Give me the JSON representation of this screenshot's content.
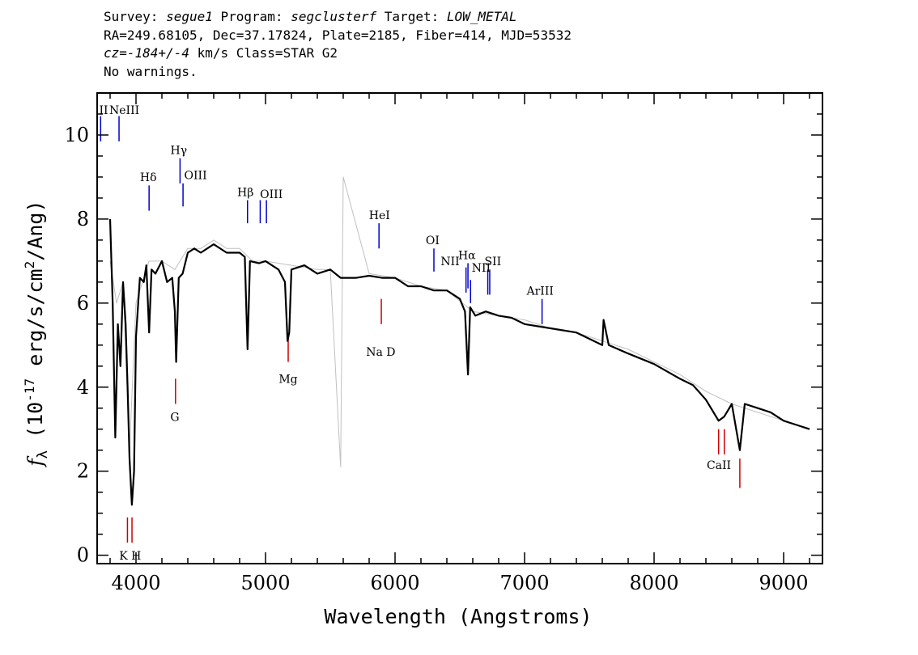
{
  "header": {
    "line1": {
      "survey_label": "Survey: ",
      "survey": "segue1",
      "program_label": " Program: ",
      "program": "segclusterf",
      "target_label": " Target: ",
      "target": "LOW_METAL"
    },
    "line2": "RA=249.68105, Dec=37.17824, Plate=2185, Fiber=414, MJD=53532",
    "line3": {
      "cz": "cz=-184+/-4",
      "rest": " km/s Class=STAR G2"
    },
    "line4": "No warnings."
  },
  "chart_data": {
    "type": "line",
    "xlabel": "Wavelength (Angstroms)",
    "ylabel": "f_λ (10^-17 erg/s/cm²/Ang)",
    "xlim": [
      3700,
      9300
    ],
    "ylim": [
      -0.2,
      11
    ],
    "x_ticks": [
      4000,
      5000,
      6000,
      7000,
      8000,
      9000
    ],
    "y_ticks": [
      0,
      2,
      4,
      6,
      8,
      10
    ],
    "grid": false,
    "colors": {
      "spectrum": "#000000",
      "noise": "#c0c0c0",
      "emission": "#0000cc",
      "absorption": "#cc0000"
    },
    "series": [
      {
        "style": "smoothed",
        "x": [
          3800,
          3820,
          3840,
          3860,
          3880,
          3900,
          3920,
          3935,
          3950,
          3968,
          3985,
          4000,
          4030,
          4060,
          4080,
          4101,
          4120,
          4150,
          4200,
          4240,
          4280,
          4300,
          4310,
          4330,
          4360,
          4400,
          4450,
          4500,
          4600,
          4700,
          4800,
          4840,
          4861,
          4880,
          4950,
          5000,
          5100,
          5150,
          5170,
          5183,
          5200,
          5300,
          5400,
          5500,
          5580,
          5600,
          5700,
          5800,
          5900,
          6000,
          6100,
          6200,
          6300,
          6400,
          6500,
          6540,
          6563,
          6580,
          6620,
          6700,
          6800,
          6900,
          7000,
          7200,
          7400,
          7600,
          7610,
          7650,
          7800,
          8000,
          8200,
          8300,
          8400,
          8498,
          8542,
          8600,
          8662,
          8700,
          8800,
          8900,
          9000,
          9100,
          9200
        ],
        "y": [
          8.0,
          6.0,
          2.8,
          5.5,
          4.5,
          6.5,
          5.5,
          4.0,
          2.3,
          1.2,
          2.0,
          5.2,
          6.6,
          6.5,
          6.9,
          5.3,
          6.8,
          6.7,
          7.0,
          6.5,
          6.6,
          5.8,
          4.6,
          6.6,
          6.7,
          7.2,
          7.3,
          7.2,
          7.4,
          7.2,
          7.2,
          7.1,
          4.9,
          7.0,
          6.95,
          7.0,
          6.8,
          6.5,
          5.1,
          5.3,
          6.8,
          6.9,
          6.7,
          6.8,
          6.6,
          6.6,
          6.6,
          6.65,
          6.6,
          6.6,
          6.4,
          6.4,
          6.3,
          6.3,
          6.1,
          5.8,
          4.3,
          5.9,
          5.7,
          5.8,
          5.7,
          5.65,
          5.5,
          5.4,
          5.3,
          5.0,
          5.6,
          5.0,
          4.8,
          4.55,
          4.2,
          4.05,
          3.7,
          3.2,
          3.3,
          3.6,
          2.5,
          3.6,
          3.5,
          3.4,
          3.2,
          3.1,
          3.0
        ]
      },
      {
        "style": "noise",
        "x": [
          3800,
          3850,
          3900,
          3950,
          4000,
          4100,
          4200,
          4300,
          4400,
          4500,
          4600,
          4700,
          4800,
          4900,
          5000,
          5200,
          5400,
          5500,
          5580,
          5600,
          5800,
          6000,
          6200,
          6400,
          6600,
          6800,
          7000,
          7200,
          7400,
          7600,
          7800,
          8000,
          8200,
          8400,
          8600,
          8800,
          9000,
          9200
        ],
        "y": [
          7.0,
          6.0,
          6.5,
          2.5,
          6.0,
          7.0,
          7.0,
          6.8,
          7.3,
          7.3,
          7.5,
          7.3,
          7.3,
          7.0,
          7.0,
          6.9,
          6.8,
          6.8,
          2.1,
          9.0,
          6.7,
          6.6,
          6.4,
          6.3,
          5.8,
          5.7,
          5.6,
          5.4,
          5.3,
          5.1,
          4.9,
          4.6,
          4.3,
          3.9,
          3.6,
          3.4,
          3.2,
          3.0
        ]
      }
    ],
    "emission_lines": [
      {
        "label": "OII",
        "x": 3727,
        "y0": 9.85,
        "y1": 10.45
      },
      {
        "label": "NeIII",
        "x": 3869,
        "y0": 9.85,
        "y1": 10.45
      },
      {
        "label": "Hδ",
        "x": 4101,
        "y0": 8.2,
        "y1": 8.8
      },
      {
        "label": "Hγ",
        "x": 4340,
        "y0": 8.85,
        "y1": 9.45
      },
      {
        "label": "OIII",
        "x": 4363,
        "y0": 8.3,
        "y1": 8.85
      },
      {
        "label": "Hβ",
        "x": 4861,
        "y0": 7.9,
        "y1": 8.45
      },
      {
        "label": "OIII",
        "x": 4959,
        "y0": 7.9,
        "y1": 8.45
      },
      {
        "label": "OIII",
        "x": 5007,
        "y0": 7.9,
        "y1": 8.45
      },
      {
        "label": "HeI",
        "x": 5876,
        "y0": 7.3,
        "y1": 7.9
      },
      {
        "label": "OI",
        "x": 6300,
        "y0": 6.75,
        "y1": 7.3
      },
      {
        "label": "NII",
        "x": 6548,
        "y0": 6.25,
        "y1": 6.85
      },
      {
        "label": "Hα",
        "x": 6563,
        "y0": 6.35,
        "y1": 6.95
      },
      {
        "label": "NII",
        "x": 6583,
        "y0": 6.0,
        "y1": 6.55
      },
      {
        "label": "SII",
        "x": 6716,
        "y0": 6.2,
        "y1": 6.8
      },
      {
        "label": "SII",
        "x": 6731,
        "y0": 6.2,
        "y1": 6.8
      },
      {
        "label": "ArIII",
        "x": 7135,
        "y0": 5.5,
        "y1": 6.1
      }
    ],
    "absorption_lines": [
      {
        "label": "K",
        "x": 3934,
        "y0": 0.3,
        "y1": 0.9
      },
      {
        "label": "H",
        "x": 3969,
        "y0": 0.3,
        "y1": 0.9
      },
      {
        "label": "G",
        "x": 4305,
        "y0": 3.6,
        "y1": 4.2
      },
      {
        "label": "Mg",
        "x": 5175,
        "y0": 4.6,
        "y1": 5.2
      },
      {
        "label": "Na",
        "x": 5894,
        "y0": 5.5,
        "y1": 6.1
      },
      {
        "label": "CaII",
        "x": 8498,
        "y0": 2.4,
        "y1": 3.0
      },
      {
        "label": "CaII",
        "x": 8542,
        "y0": 2.4,
        "y1": 3.0
      },
      {
        "label": "CaII",
        "x": 8662,
        "y0": 1.6,
        "y1": 2.3
      }
    ],
    "line_label_positions": [
      {
        "text": "II",
        "x": 3750,
        "y": 10.5,
        "kind": "emission"
      },
      {
        "text": "NeIII",
        "x": 3910,
        "y": 10.5,
        "kind": "emission"
      },
      {
        "text": "Hδ",
        "x": 4095,
        "y": 8.9,
        "kind": "emission"
      },
      {
        "text": "Hγ",
        "x": 4330,
        "y": 9.55,
        "kind": "emission"
      },
      {
        "text": "OIII",
        "x": 4460,
        "y": 8.95,
        "kind": "emission"
      },
      {
        "text": "Hβ",
        "x": 4845,
        "y": 8.55,
        "kind": "emission"
      },
      {
        "text": "OIII",
        "x": 5045,
        "y": 8.5,
        "kind": "emission"
      },
      {
        "text": "HeI",
        "x": 5880,
        "y": 8.0,
        "kind": "emission"
      },
      {
        "text": "OI",
        "x": 6290,
        "y": 7.4,
        "kind": "emission"
      },
      {
        "text": "NII",
        "x": 6425,
        "y": 6.9,
        "kind": "emission"
      },
      {
        "text": "Hα",
        "x": 6555,
        "y": 7.05,
        "kind": "emission"
      },
      {
        "text": "NII",
        "x": 6665,
        "y": 6.75,
        "kind": "emission"
      },
      {
        "text": "SII",
        "x": 6755,
        "y": 6.9,
        "kind": "emission"
      },
      {
        "text": "ArIII",
        "x": 7120,
        "y": 6.2,
        "kind": "emission"
      },
      {
        "text": "K H",
        "x": 3955,
        "y": -0.1,
        "kind": "absorption"
      },
      {
        "text": "G",
        "x": 4300,
        "y": 3.2,
        "kind": "absorption"
      },
      {
        "text": "Mg",
        "x": 5175,
        "y": 4.1,
        "kind": "absorption"
      },
      {
        "text": "Na  D",
        "x": 5890,
        "y": 4.75,
        "kind": "absorption"
      },
      {
        "text": "CaII",
        "x": 8500,
        "y": 2.05,
        "kind": "absorption"
      }
    ]
  }
}
